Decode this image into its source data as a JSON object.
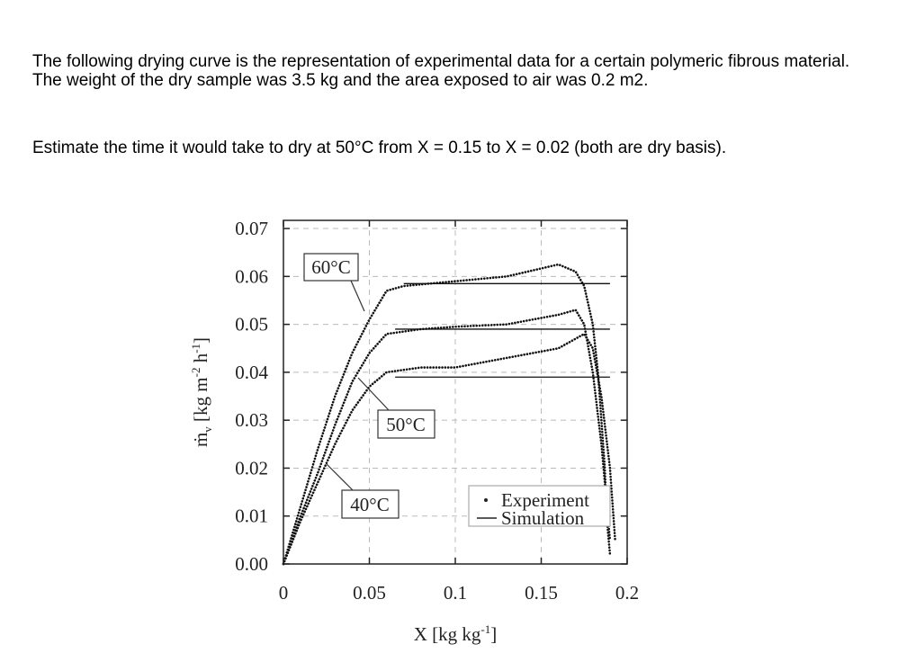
{
  "question": {
    "paragraphs": [
      "The following drying curve is the representation of experimental data for a certain polymeric fibrous material. The weight of the dry sample was 3.5 kg and the area exposed to air was 0.2 m2.",
      "Estimate the time it would take to dry at 50°C from X = 0.15 to X = 0.02 (both are dry basis)."
    ]
  },
  "chart_data": {
    "type": "line",
    "x_label": [
      "X [kg kg",
      "-1",
      "]"
    ],
    "y_label": [
      "ṁ",
      "v",
      " [kg m",
      "-2",
      " h",
      "-1",
      "]"
    ],
    "xlim": [
      0,
      0.2
    ],
    "ylim": [
      0,
      0.0717
    ],
    "xticks": [
      0,
      0.05,
      0.1,
      0.15,
      0.2
    ],
    "yticks": [
      {
        "value": 0,
        "label": "0.00"
      },
      0.01,
      0.02,
      0.03,
      0.04,
      0.05,
      0.06,
      0.07
    ],
    "grid": true,
    "experiment": [
      {
        "name": "60°C",
        "x": [
          0,
          0.01,
          0.02,
          0.03,
          0.04,
          0.05,
          0.06,
          0.07,
          0.1,
          0.13,
          0.16,
          0.17,
          0.175,
          0.18,
          0.183,
          0.185,
          0.187,
          0.188,
          0.19
        ],
        "values": [
          0,
          0.012,
          0.024,
          0.035,
          0.044,
          0.051,
          0.057,
          0.058,
          0.059,
          0.06,
          0.0625,
          0.061,
          0.058,
          0.05,
          0.04,
          0.03,
          0.02,
          0.01,
          0.002
        ]
      },
      {
        "name": "50°C",
        "x": [
          0,
          0.01,
          0.02,
          0.03,
          0.04,
          0.05,
          0.06,
          0.08,
          0.1,
          0.13,
          0.16,
          0.17,
          0.175,
          0.18,
          0.185,
          0.19
        ],
        "values": [
          0,
          0.01,
          0.019,
          0.029,
          0.038,
          0.044,
          0.048,
          0.049,
          0.0495,
          0.05,
          0.052,
          0.053,
          0.05,
          0.04,
          0.025,
          0.005
        ]
      },
      {
        "name": "40°C",
        "x": [
          0,
          0.01,
          0.02,
          0.03,
          0.04,
          0.05,
          0.06,
          0.08,
          0.1,
          0.13,
          0.16,
          0.175,
          0.18,
          0.185,
          0.19,
          0.193
        ],
        "values": [
          0,
          0.009,
          0.017,
          0.025,
          0.032,
          0.037,
          0.04,
          0.041,
          0.041,
          0.043,
          0.045,
          0.048,
          0.045,
          0.035,
          0.02,
          0.005
        ]
      }
    ],
    "simulation": [
      {
        "x": [
          0.07,
          0.19
        ],
        "values": [
          0.0585,
          0.0585
        ]
      },
      {
        "x": [
          0.065,
          0.19
        ],
        "values": [
          0.049,
          0.049
        ]
      },
      {
        "x": [
          0.065,
          0.19
        ],
        "values": [
          0.039,
          0.039
        ]
      }
    ],
    "legend": {
      "experiment": "Experiment",
      "simulation": "Simulation"
    },
    "color": "#111111"
  }
}
